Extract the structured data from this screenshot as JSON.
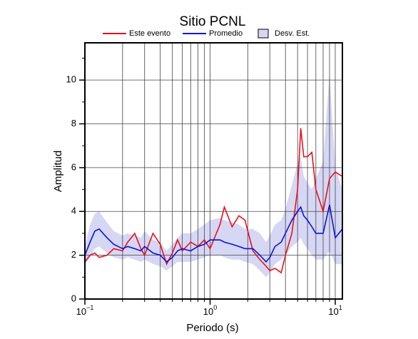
{
  "chart_data": {
    "type": "line",
    "title": "Sitio PCNL",
    "xlabel": "Periodo (s)",
    "ylabel": "Amplitud",
    "xscale": "log",
    "grid": true,
    "legend": "top",
    "xlim": [
      0.1,
      11.4
    ],
    "ylim": [
      0,
      11.7
    ],
    "xticks": [
      {
        "value": 0.1,
        "label": "10",
        "exponent": "−1"
      },
      {
        "value": 1,
        "label": "10",
        "exponent": "0"
      },
      {
        "value": 10,
        "label": "10",
        "exponent": "1"
      }
    ],
    "xminorticks": [
      0.2,
      0.3,
      0.4,
      0.5,
      0.6,
      0.7,
      0.8,
      0.9,
      2,
      3,
      4,
      5,
      6,
      7,
      8,
      9
    ],
    "yticks": [
      0,
      2,
      4,
      6,
      8,
      10
    ],
    "yminorticks": [
      1,
      3,
      5,
      7,
      9,
      11
    ],
    "x": [
      0.1,
      0.11,
      0.12,
      0.13,
      0.15,
      0.17,
      0.2,
      0.22,
      0.25,
      0.28,
      0.3,
      0.35,
      0.4,
      0.45,
      0.5,
      0.55,
      0.6,
      0.7,
      0.8,
      0.9,
      1.0,
      1.2,
      1.3,
      1.5,
      1.7,
      1.9,
      2.2,
      2.5,
      2.8,
      3.0,
      3.3,
      3.7,
      4.0,
      4.5,
      5.0,
      5.3,
      5.6,
      6.0,
      6.5,
      7.0,
      8.0,
      9.0,
      10,
      11.4
    ],
    "series": [
      {
        "name": "Este evento",
        "color": "#e8101a",
        "values": [
          1.7,
          2.0,
          2.1,
          1.9,
          2.0,
          2.3,
          2.2,
          2.6,
          3.0,
          2.3,
          2.0,
          3.0,
          2.5,
          1.6,
          2.1,
          2.7,
          2.2,
          2.6,
          2.4,
          2.7,
          2.3,
          3.4,
          4.2,
          3.3,
          3.8,
          3.6,
          2.2,
          1.8,
          1.5,
          1.3,
          1.4,
          1.2,
          2.0,
          3.0,
          5.0,
          7.8,
          6.5,
          6.5,
          6.7,
          5.0,
          4.0,
          5.5,
          5.8,
          5.6
        ]
      },
      {
        "name": "Promedio",
        "color": "#0a14d8",
        "values": [
          2.0,
          2.6,
          3.1,
          3.2,
          2.8,
          2.5,
          2.3,
          2.4,
          2.3,
          2.2,
          2.4,
          2.1,
          2.0,
          1.7,
          1.9,
          2.2,
          2.3,
          2.2,
          2.4,
          2.5,
          2.7,
          2.7,
          2.6,
          2.5,
          2.4,
          2.3,
          2.3,
          2.0,
          1.7,
          1.9,
          2.4,
          2.6,
          3.0,
          3.6,
          4.0,
          4.2,
          3.8,
          3.6,
          3.3,
          3.0,
          3.0,
          4.3,
          2.8,
          3.2
        ]
      },
      {
        "name": "Desv. Est.",
        "color": "#d6d6f5",
        "type": "band",
        "lower": [
          1.6,
          1.9,
          2.3,
          2.4,
          2.1,
          1.9,
          1.8,
          1.9,
          1.8,
          1.7,
          1.8,
          1.6,
          1.5,
          1.3,
          1.5,
          1.7,
          1.7,
          1.7,
          1.8,
          1.9,
          2.0,
          2.0,
          1.9,
          1.8,
          1.8,
          1.7,
          1.6,
          1.3,
          1.0,
          1.2,
          1.6,
          1.8,
          2.0,
          2.4,
          2.6,
          2.8,
          2.5,
          2.3,
          2.0,
          1.8,
          1.8,
          2.2,
          1.6,
          1.6
        ],
        "upper": [
          2.4,
          3.4,
          3.9,
          4.0,
          3.5,
          3.1,
          2.9,
          3.0,
          2.9,
          2.8,
          3.1,
          2.7,
          2.6,
          2.2,
          2.5,
          2.8,
          3.0,
          3.0,
          3.2,
          3.4,
          3.6,
          3.7,
          3.6,
          3.5,
          3.4,
          3.2,
          3.2,
          3.0,
          2.6,
          2.9,
          3.4,
          3.6,
          4.1,
          5.2,
          6.2,
          6.5,
          5.6,
          5.3,
          5.0,
          5.5,
          6.3,
          10.3,
          6.0,
          5.0
        ]
      }
    ]
  }
}
